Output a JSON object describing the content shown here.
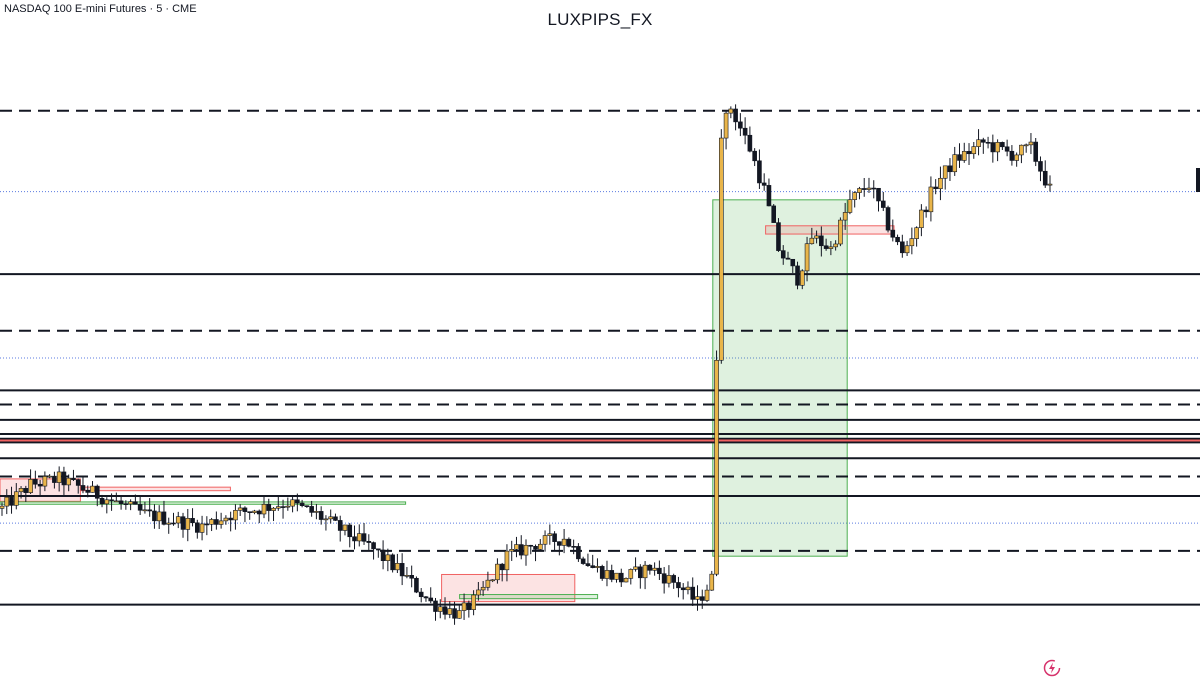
{
  "header": {
    "symbol": "NASDAQ 100 E-mini Futures · 5 · CME",
    "watermark": "LUXPIPS_FX"
  },
  "colors": {
    "bull": "#e9b54a",
    "bear": "#131722",
    "green_zone": "#4caf50",
    "red_zone": "#f06262",
    "level": "#131722",
    "dotted": "#5b7be0"
  },
  "icons": {
    "bottom_right": "lightning-circle-icon"
  },
  "chart_data": {
    "type": "candlestick",
    "y_range": [
      0,
      1
    ],
    "levels": {
      "solid": [
        0.637,
        0.077,
        0.44,
        0.39,
        0.366,
        0.358,
        0.352,
        0.325,
        0.261
      ],
      "dashed": [
        0.914,
        0.541,
        0.416,
        0.294,
        0.168
      ],
      "dotted": [
        0.777,
        0.495,
        0.215
      ],
      "red": [
        0.355
      ]
    },
    "zones": [
      {
        "kind": "green",
        "x0": 0.594,
        "x1": 0.706,
        "top": 0.763,
        "bottom": 0.159
      },
      {
        "kind": "red",
        "x0": 0.368,
        "x1": 0.479,
        "top": 0.128,
        "bottom": 0.082
      },
      {
        "kind": "red",
        "x0": 0.638,
        "x1": 0.745,
        "top": 0.719,
        "bottom": 0.705
      },
      {
        "kind": "red",
        "x0": 0.0,
        "x1": 0.067,
        "top": 0.29,
        "bottom": 0.252
      },
      {
        "kind": "red",
        "x0": 0.067,
        "x1": 0.192,
        "top": 0.276,
        "bottom": 0.27
      },
      {
        "kind": "green",
        "x0": 0.0,
        "x1": 0.338,
        "top": 0.251,
        "bottom": 0.247
      },
      {
        "kind": "green",
        "x0": 0.383,
        "x1": 0.498,
        "top": 0.094,
        "bottom": 0.087
      }
    ],
    "knots": [
      [
        0,
        0.24
      ],
      [
        6,
        0.28
      ],
      [
        12,
        0.29
      ],
      [
        18,
        0.27
      ],
      [
        24,
        0.25
      ],
      [
        30,
        0.23
      ],
      [
        36,
        0.22
      ],
      [
        42,
        0.21
      ],
      [
        48,
        0.23
      ],
      [
        54,
        0.24
      ],
      [
        60,
        0.25
      ],
      [
        66,
        0.23
      ],
      [
        72,
        0.2
      ],
      [
        78,
        0.17
      ],
      [
        84,
        0.13
      ],
      [
        90,
        0.08
      ],
      [
        96,
        0.06
      ],
      [
        100,
        0.09
      ],
      [
        106,
        0.16
      ],
      [
        112,
        0.18
      ],
      [
        118,
        0.19
      ],
      [
        124,
        0.14
      ],
      [
        130,
        0.12
      ],
      [
        136,
        0.14
      ],
      [
        142,
        0.11
      ],
      [
        146,
        0.08
      ],
      [
        149,
        0.12
      ],
      [
        151,
        0.88
      ],
      [
        153,
        0.92
      ],
      [
        157,
        0.85
      ],
      [
        160,
        0.78
      ],
      [
        163,
        0.68
      ],
      [
        167,
        0.63
      ],
      [
        170,
        0.7
      ],
      [
        174,
        0.68
      ],
      [
        178,
        0.76
      ],
      [
        182,
        0.79
      ],
      [
        186,
        0.72
      ],
      [
        189,
        0.67
      ],
      [
        192,
        0.72
      ],
      [
        196,
        0.79
      ],
      [
        200,
        0.83
      ],
      [
        206,
        0.86
      ],
      [
        212,
        0.84
      ],
      [
        216,
        0.85
      ],
      [
        220,
        0.78
      ]
    ],
    "seed": 12345
  }
}
